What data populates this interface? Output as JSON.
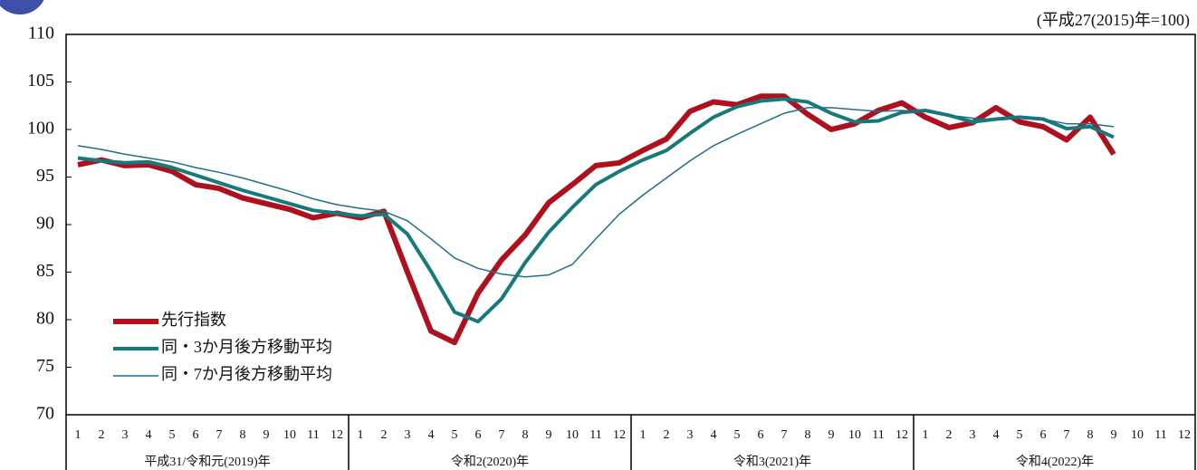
{
  "chart_data": {
    "type": "line",
    "note": "(平成27(2015)年=100)",
    "categories": [
      "1",
      "2",
      "3",
      "4",
      "5",
      "6",
      "7",
      "8",
      "9",
      "10",
      "11",
      "12",
      "1",
      "2",
      "3",
      "4",
      "5",
      "6",
      "7",
      "8",
      "9",
      "10",
      "11",
      "12",
      "1",
      "2",
      "3",
      "4",
      "5",
      "6",
      "7",
      "8",
      "9",
      "10",
      "11",
      "12",
      "1",
      "2",
      "3",
      "4",
      "5",
      "6",
      "7",
      "8",
      "9",
      "10",
      "11",
      "12"
    ],
    "year_labels": [
      "平成31/令和元(2019)年",
      "令和2(2020)年",
      "令和3(2021)年",
      "令和4(2022)年"
    ],
    "ylim": [
      70,
      110
    ],
    "yticks": [
      70,
      75,
      80,
      85,
      90,
      95,
      100,
      105,
      110
    ],
    "series": [
      {
        "name": "先行指数",
        "color": "#b0101e",
        "width": 6,
        "values": [
          96.3,
          96.8,
          96.2,
          96.3,
          95.6,
          94.2,
          93.8,
          92.8,
          92.2,
          91.6,
          90.7,
          91.2,
          90.7,
          91.4,
          85.0,
          78.8,
          77.6,
          82.8,
          86.3,
          88.9,
          92.3,
          94.2,
          96.2,
          96.5,
          97.8,
          99.0,
          101.9,
          102.9,
          102.6,
          103.5,
          103.5,
          101.6,
          100.0,
          100.6,
          102.0,
          102.8,
          101.3,
          100.2,
          100.7,
          102.3,
          100.8,
          100.3,
          98.9,
          101.3,
          97.4,
          null,
          null,
          null
        ]
      },
      {
        "name": "同・3か月後方移動平均",
        "color": "#16797a",
        "width": 4,
        "values": [
          97.0,
          96.7,
          96.5,
          96.6,
          96.0,
          95.2,
          94.4,
          93.6,
          92.9,
          92.2,
          91.5,
          91.2,
          90.9,
          91.1,
          89.0,
          85.1,
          80.8,
          79.8,
          82.2,
          86.0,
          89.2,
          91.8,
          94.2,
          95.6,
          96.8,
          97.8,
          99.6,
          101.3,
          102.4,
          103.0,
          103.2,
          102.9,
          101.7,
          100.8,
          100.9,
          101.8,
          102.0,
          101.5,
          100.8,
          101.1,
          101.3,
          101.1,
          100.1,
          100.3,
          99.2,
          null,
          null,
          null
        ]
      },
      {
        "name": "同・7か月後方移動平均",
        "color": "#1f6f86",
        "width": 1.5,
        "values": [
          98.3,
          97.9,
          97.4,
          97.0,
          96.6,
          96.0,
          95.5,
          94.9,
          94.2,
          93.5,
          92.7,
          92.1,
          91.7,
          91.4,
          90.4,
          88.5,
          86.5,
          85.4,
          84.8,
          84.5,
          84.7,
          85.8,
          88.5,
          91.1,
          93.1,
          94.9,
          96.7,
          98.3,
          99.5,
          100.6,
          101.7,
          102.3,
          102.3,
          102.1,
          101.9,
          102.0,
          101.9,
          101.5,
          101.2,
          101.0,
          101.2,
          101.1,
          100.6,
          100.6,
          100.3,
          null,
          null,
          null
        ]
      }
    ]
  }
}
